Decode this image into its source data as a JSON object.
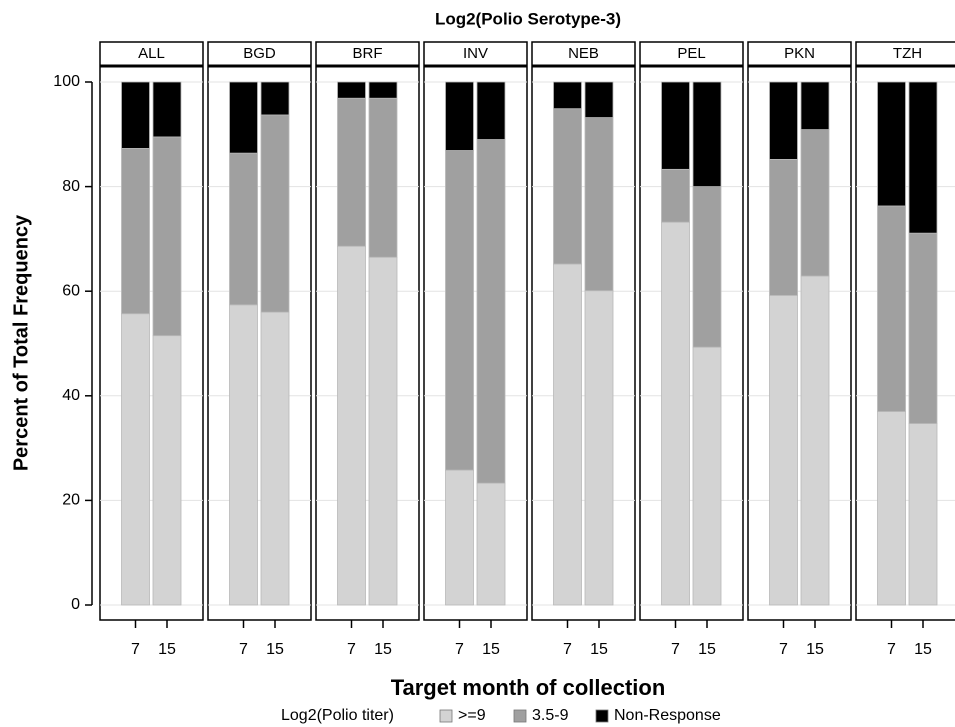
{
  "chart_data": {
    "type": "bar",
    "stacked": true,
    "title": "Log2(Polio Serotype-3)",
    "xlabel": "Target month of collection",
    "ylabel": "Percent of Total Frequency",
    "legend_title": "Log2(Polio titer)",
    "panels": [
      "ALL",
      "BGD",
      "BRF",
      "INV",
      "NEB",
      "PEL",
      "PKN",
      "TZH"
    ],
    "categories": [
      "7",
      "15"
    ],
    "ylim": [
      0,
      100
    ],
    "yticks": [
      0,
      20,
      40,
      60,
      80,
      100
    ],
    "grid": true,
    "series": [
      {
        "name": ">=9",
        "color": "#d3d3d3",
        "values": [
          [
            55.7,
            51.5
          ],
          [
            57.4,
            56.0
          ],
          [
            68.6,
            66.5
          ],
          [
            25.8,
            23.3
          ],
          [
            65.2,
            60.1
          ],
          [
            73.2,
            49.3
          ],
          [
            59.2,
            62.9
          ],
          [
            37.0,
            34.7
          ]
        ]
      },
      {
        "name": "3.5-9",
        "color": "#a0a0a0",
        "values": [
          [
            31.6,
            38.0
          ],
          [
            29.0,
            37.7
          ],
          [
            28.3,
            30.4
          ],
          [
            61.1,
            65.7
          ],
          [
            29.7,
            33.1
          ],
          [
            10.1,
            30.7
          ],
          [
            26.0,
            28.0
          ],
          [
            39.3,
            36.4
          ]
        ]
      },
      {
        "name": "Non-Response",
        "color": "#000000",
        "values": [
          [
            12.7,
            10.5
          ],
          [
            13.6,
            6.3
          ],
          [
            3.1,
            3.1
          ],
          [
            13.1,
            11.0
          ],
          [
            5.1,
            6.8
          ],
          [
            16.7,
            20.0
          ],
          [
            14.8,
            9.1
          ],
          [
            23.7,
            28.9
          ]
        ]
      }
    ]
  }
}
